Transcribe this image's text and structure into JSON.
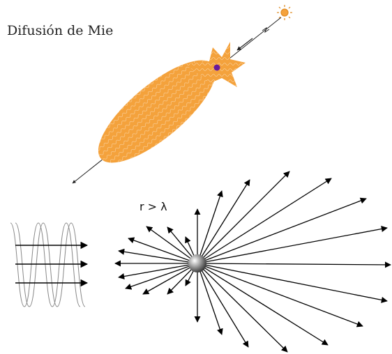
{
  "title": "Difusión de Mie",
  "label": "r > λ"
}
